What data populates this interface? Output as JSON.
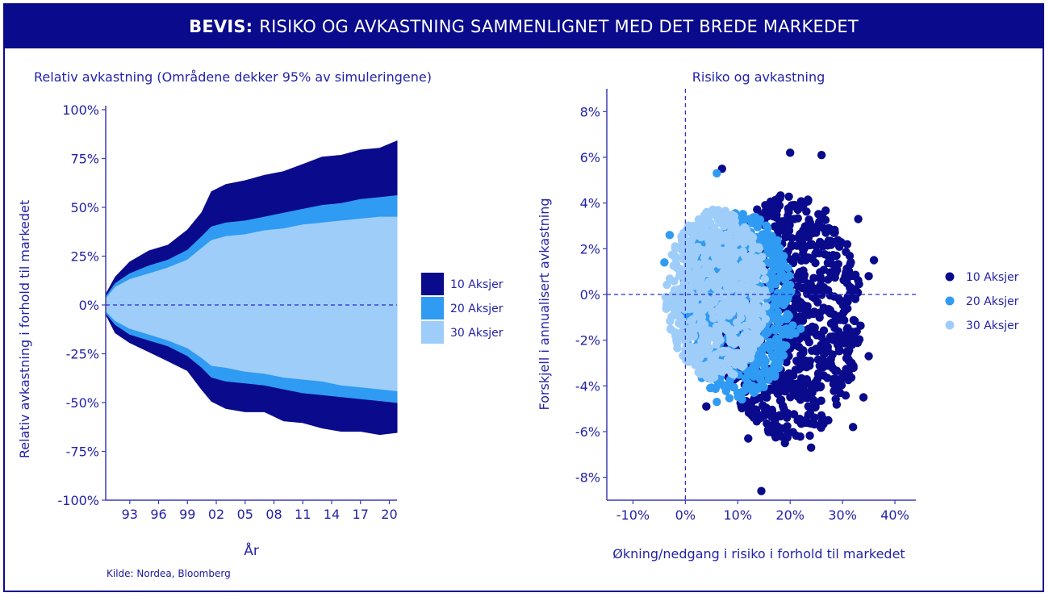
{
  "banner": {
    "bold": "BEVIS:",
    "rest": "RISIKO OG AVKASTNING SAMMENLIGNET MED DET BREDE MARKEDET"
  },
  "source": "Kilde: Nordea, Bloomberg",
  "colors": {
    "dark": "#0a0a8c",
    "mid": "#2f9bf2",
    "light": "#9fcdfa",
    "text": "#2323a8"
  },
  "chart_data": [
    {
      "type": "area",
      "title": "Relativ avkastning (Områdene dekker 95% av simuleringene)",
      "xlabel": "År",
      "ylabel": "Relativ avkastning i forhold til markedet",
      "x_ticks": [
        "93",
        "96",
        "99",
        "02",
        "05",
        "08",
        "11",
        "14",
        "17",
        "20"
      ],
      "y_ticks": [
        "100%",
        "75%",
        "50%",
        "25%",
        "0%",
        "-25%",
        "-50%",
        "-75%",
        "-100%"
      ],
      "ylim": [
        -100,
        100
      ],
      "xlim": [
        1990.5,
        2020.8
      ],
      "x": [
        1990.5,
        1991.5,
        1993,
        1995,
        1997,
        1999,
        2000.5,
        2001.5,
        2003,
        2005,
        2007,
        2009,
        2011,
        2013,
        2015,
        2017,
        2019,
        2020.8
      ],
      "series": [
        {
          "name": "10 Aksjer",
          "upper": [
            5,
            15,
            22,
            27,
            31,
            38,
            48,
            58,
            61,
            64,
            66,
            69,
            72,
            75,
            77,
            79,
            81,
            84
          ],
          "lower": [
            -5,
            -14,
            -20,
            -24,
            -28,
            -34,
            -43,
            -50,
            -53,
            -54,
            -55,
            -59,
            -61,
            -63,
            -64,
            -65,
            -66,
            -66
          ]
        },
        {
          "name": "20 Aksjer",
          "upper": [
            4,
            11,
            16,
            20,
            23,
            28,
            35,
            40,
            42,
            43,
            45,
            47,
            49,
            51,
            52,
            54,
            55,
            56
          ],
          "lower": [
            -4,
            -10,
            -15,
            -18,
            -21,
            -26,
            -32,
            -37,
            -39,
            -40,
            -41,
            -43,
            -45,
            -46,
            -47,
            -48,
            -49,
            -50
          ]
        },
        {
          "name": "30 Aksjer",
          "upper": [
            3,
            9,
            13,
            16,
            19,
            23,
            29,
            33,
            35,
            36,
            38,
            39,
            41,
            42,
            43,
            44,
            45,
            45
          ],
          "lower": [
            -3,
            -8,
            -12,
            -15,
            -18,
            -22,
            -27,
            -31,
            -32,
            -34,
            -35,
            -37,
            -38,
            -39,
            -41,
            -42,
            -43,
            -44
          ]
        }
      ],
      "legend": "right"
    },
    {
      "type": "scatter",
      "title": "Risiko og avkastning",
      "xlabel": "Økning/nedgang i risiko i forhold til markedet",
      "ylabel": "Forskjell i annualisert avkastning",
      "x_ticks": [
        "-10%",
        "0%",
        "10%",
        "20%",
        "30%",
        "40%"
      ],
      "y_ticks": [
        "8%",
        "6%",
        "4%",
        "2%",
        "0%",
        "-2%",
        "-4%",
        "-6%",
        "-8%"
      ],
      "xlim": [
        -15,
        44
      ],
      "ylim": [
        -9,
        9
      ],
      "series": [
        {
          "name": "10 Aksjer",
          "center": [
            20,
            -1
          ],
          "radius": [
            14,
            5.5
          ],
          "outliers": [
            [
              14.5,
              -8.6
            ],
            [
              26,
              6.1
            ],
            [
              20,
              6.2
            ],
            [
              33,
              3.3
            ],
            [
              36,
              1.5
            ],
            [
              35,
              -2.7
            ],
            [
              34,
              -4.5
            ],
            [
              19,
              -6.5
            ],
            [
              12,
              -6.3
            ],
            [
              24,
              -6.7
            ],
            [
              4,
              -4.9
            ],
            [
              7,
              5.5
            ],
            [
              35,
              0.8
            ],
            [
              32,
              -5.8
            ]
          ]
        },
        {
          "name": "20 Aksjer",
          "center": [
            10,
            -0.5
          ],
          "radius": [
            11,
            4.2
          ],
          "outliers": [
            [
              -3,
              2.6
            ],
            [
              -4,
              1.4
            ],
            [
              6,
              5.3
            ],
            [
              21,
              -1.7
            ],
            [
              22,
              -1.5
            ],
            [
              6,
              -4.7
            ]
          ]
        },
        {
          "name": "30 Aksjer",
          "center": [
            6,
            0
          ],
          "radius": [
            10,
            3.8
          ],
          "outliers": []
        }
      ],
      "legend": "right"
    }
  ]
}
